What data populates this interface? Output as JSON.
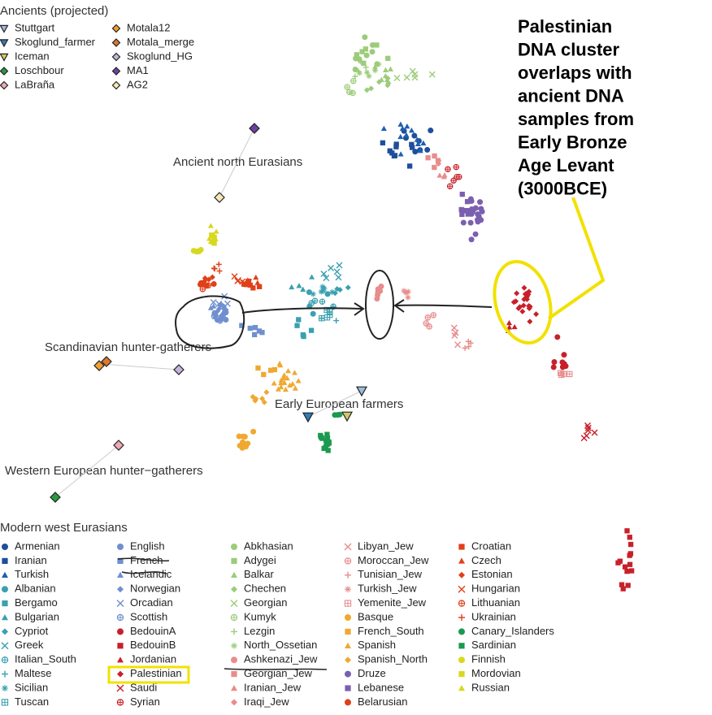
{
  "chart_data": {
    "type": "scatter",
    "ancients_title": "Ancients (projected)",
    "ancients": [
      {
        "name": "Stuttgart",
        "color": "#9cbbdc",
        "marker": "triangle-down"
      },
      {
        "name": "Skoglund_farmer",
        "color": "#2f7fb5",
        "marker": "triangle-down"
      },
      {
        "name": "Iceman",
        "color": "#cccc66",
        "marker": "triangle-down"
      },
      {
        "name": "Loschbour",
        "color": "#2a9a40",
        "marker": "diamond"
      },
      {
        "name": "LaBraña",
        "color": "#f2a8b2",
        "marker": "diamond"
      },
      {
        "name": "Motala12",
        "color": "#f0a030",
        "marker": "diamond"
      },
      {
        "name": "Motala_merge",
        "color": "#e07828",
        "marker": "diamond"
      },
      {
        "name": "Skoglund_HG",
        "color": "#c4b4da",
        "marker": "diamond"
      },
      {
        "name": "MA1",
        "color": "#7040a0",
        "marker": "diamond"
      },
      {
        "name": "AG2",
        "color": "#f8e8b4",
        "marker": "diamond"
      }
    ],
    "modern_title": "Modern west Eurasians",
    "series": [
      {
        "name": "Armenian",
        "color": "#1f4e9c",
        "marker": "circle"
      },
      {
        "name": "Iranian",
        "color": "#1f4e9c",
        "marker": "square"
      },
      {
        "name": "Turkish",
        "color": "#1f5fb0",
        "marker": "triangle"
      },
      {
        "name": "Albanian",
        "color": "#3aa0b0",
        "marker": "circle"
      },
      {
        "name": "Bergamo",
        "color": "#3aa0b0",
        "marker": "square"
      },
      {
        "name": "Bulgarian",
        "color": "#3aa0b0",
        "marker": "triangle"
      },
      {
        "name": "Cypriot",
        "color": "#3aa0b0",
        "marker": "diamond"
      },
      {
        "name": "Greek",
        "color": "#3aa0b0",
        "marker": "x"
      },
      {
        "name": "Italian_South",
        "color": "#3aa0b0",
        "marker": "circle-plus"
      },
      {
        "name": "Maltese",
        "color": "#3aa0b0",
        "marker": "plus"
      },
      {
        "name": "Sicilian",
        "color": "#3aa0b0",
        "marker": "asterisk"
      },
      {
        "name": "Tuscan",
        "color": "#3aa0b0",
        "marker": "square-plus"
      },
      {
        "name": "English",
        "color": "#6f8fd0",
        "marker": "circle"
      },
      {
        "name": "French",
        "color": "#6f8fd0",
        "marker": "square"
      },
      {
        "name": "Icelandic",
        "color": "#6f8fd0",
        "marker": "triangle"
      },
      {
        "name": "Norwegian",
        "color": "#6f8fd0",
        "marker": "diamond"
      },
      {
        "name": "Orcadian",
        "color": "#6f8fd0",
        "marker": "x"
      },
      {
        "name": "Scottish",
        "color": "#6f8fd0",
        "marker": "circle-plus"
      },
      {
        "name": "BedouinA",
        "color": "#c8202a",
        "marker": "circle"
      },
      {
        "name": "BedouinB",
        "color": "#c8202a",
        "marker": "square"
      },
      {
        "name": "Jordanian",
        "color": "#c8202a",
        "marker": "triangle"
      },
      {
        "name": "Palestinian",
        "color": "#c8202a",
        "marker": "diamond"
      },
      {
        "name": "Saudi",
        "color": "#c8202a",
        "marker": "x"
      },
      {
        "name": "Syrian",
        "color": "#c8202a",
        "marker": "circle-plus"
      },
      {
        "name": "Abkhasian",
        "color": "#9ccc7a",
        "marker": "circle"
      },
      {
        "name": "Adygei",
        "color": "#9ccc7a",
        "marker": "square"
      },
      {
        "name": "Balkar",
        "color": "#9ccc7a",
        "marker": "triangle"
      },
      {
        "name": "Chechen",
        "color": "#9ccc7a",
        "marker": "diamond"
      },
      {
        "name": "Georgian",
        "color": "#9ccc7a",
        "marker": "x"
      },
      {
        "name": "Kumyk",
        "color": "#9ccc7a",
        "marker": "circle-plus"
      },
      {
        "name": "Lezgin",
        "color": "#9ccc7a",
        "marker": "plus"
      },
      {
        "name": "North_Ossetian",
        "color": "#9ccc7a",
        "marker": "asterisk"
      },
      {
        "name": "Ashkenazi_Jew",
        "color": "#e88c8c",
        "marker": "circle"
      },
      {
        "name": "Georgian_Jew",
        "color": "#e88c8c",
        "marker": "square"
      },
      {
        "name": "Iranian_Jew",
        "color": "#e88c8c",
        "marker": "triangle"
      },
      {
        "name": "Iraqi_Jew",
        "color": "#e88c8c",
        "marker": "diamond"
      },
      {
        "name": "Libyan_Jew",
        "color": "#e88c8c",
        "marker": "x"
      },
      {
        "name": "Moroccan_Jew",
        "color": "#e88c8c",
        "marker": "circle-plus"
      },
      {
        "name": "Tunisian_Jew",
        "color": "#e88c8c",
        "marker": "plus"
      },
      {
        "name": "Turkish_Jew",
        "color": "#e88c8c",
        "marker": "asterisk"
      },
      {
        "name": "Yemenite_Jew",
        "color": "#e88c8c",
        "marker": "square-plus"
      },
      {
        "name": "Basque",
        "color": "#f0a830",
        "marker": "circle"
      },
      {
        "name": "French_South",
        "color": "#f0a830",
        "marker": "square"
      },
      {
        "name": "Spanish",
        "color": "#f0a830",
        "marker": "triangle"
      },
      {
        "name": "Spanish_North",
        "color": "#f0a830",
        "marker": "diamond"
      },
      {
        "name": "Druze",
        "color": "#7b5fb0",
        "marker": "circle"
      },
      {
        "name": "Lebanese",
        "color": "#7b5fb0",
        "marker": "square"
      },
      {
        "name": "Belarusian",
        "color": "#e0401a",
        "marker": "circle"
      },
      {
        "name": "Croatian",
        "color": "#e0401a",
        "marker": "square"
      },
      {
        "name": "Czech",
        "color": "#e0401a",
        "marker": "triangle"
      },
      {
        "name": "Estonian",
        "color": "#e0401a",
        "marker": "diamond"
      },
      {
        "name": "Hungarian",
        "color": "#e0401a",
        "marker": "x"
      },
      {
        "name": "Lithuanian",
        "color": "#e0401a",
        "marker": "circle-plus"
      },
      {
        "name": "Ukrainian",
        "color": "#e0401a",
        "marker": "plus"
      },
      {
        "name": "Canary_Islanders",
        "color": "#1a9a50",
        "marker": "circle"
      },
      {
        "name": "Sardinian",
        "color": "#1a9a50",
        "marker": "square"
      },
      {
        "name": "Finnish",
        "color": "#d8d820",
        "marker": "circle"
      },
      {
        "name": "Mordovian",
        "color": "#d8d820",
        "marker": "square"
      },
      {
        "name": "Russian",
        "color": "#d8d820",
        "marker": "triangle"
      }
    ],
    "annotations": [
      "Ancient north Eurasians",
      "Scandinavian hunter-gatherers",
      "Early European farmers",
      "Western European hunter−gatherers"
    ],
    "callout": [
      "Palestinian",
      "DNA cluster",
      "overlaps with",
      "ancient DNA",
      "samples from",
      "Early Bronze",
      "Age Levant",
      "(3000BCE)"
    ]
  }
}
